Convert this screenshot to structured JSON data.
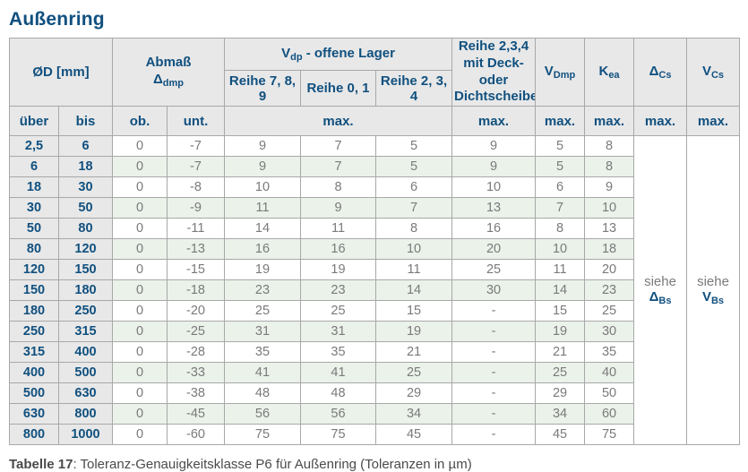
{
  "title": "Außenring",
  "colors": {
    "accent": "#10507f",
    "cellgray": "#e8e8e8",
    "rowgreen": "#eaf2ea",
    "gridline": "#a8a8a8",
    "datatext": "#7a7a7a"
  },
  "table": {
    "header": {
      "od": "ØD  [mm]",
      "abmass_line1": "Abmaß",
      "abmass_sym": "Δ",
      "abmass_sub": "dmp",
      "vdp_main": "V",
      "vdp_sub": "dp",
      "vdp_rest": "-  offene Lager",
      "reihe789": "Reihe 7, 8, 9",
      "reihe01": "Reihe 0, 1",
      "reihe234": "Reihe 2, 3, 4",
      "deck_line1": "Reihe 2,3,4",
      "deck_line2": "mit Deck- oder",
      "deck_line3": "Dichtscheiben",
      "vdmp_main": "V",
      "vdmp_sub": "Dmp",
      "kea_main": "K",
      "kea_sub": "ea",
      "dcs_main": "Δ",
      "dcs_sub": "Cs",
      "vcs_main": "V",
      "vcs_sub": "Cs",
      "ueber": "über",
      "bis": "bis",
      "ob": "ob.",
      "unt": "unt.",
      "max": "max."
    },
    "rows": [
      {
        "u": "2,5",
        "b": "6",
        "o": "0",
        "n": "-7",
        "r7": "9",
        "r0": "7",
        "r2": "5",
        "d": "9",
        "v": "5",
        "k": "8"
      },
      {
        "u": "6",
        "b": "18",
        "o": "0",
        "n": "-7",
        "r7": "9",
        "r0": "7",
        "r2": "5",
        "d": "9",
        "v": "5",
        "k": "8"
      },
      {
        "u": "18",
        "b": "30",
        "o": "0",
        "n": "-8",
        "r7": "10",
        "r0": "8",
        "r2": "6",
        "d": "10",
        "v": "6",
        "k": "9"
      },
      {
        "u": "30",
        "b": "50",
        "o": "0",
        "n": "-9",
        "r7": "11",
        "r0": "9",
        "r2": "7",
        "d": "13",
        "v": "7",
        "k": "10"
      },
      {
        "u": "50",
        "b": "80",
        "o": "0",
        "n": "-11",
        "r7": "14",
        "r0": "11",
        "r2": "8",
        "d": "16",
        "v": "8",
        "k": "13"
      },
      {
        "u": "80",
        "b": "120",
        "o": "0",
        "n": "-13",
        "r7": "16",
        "r0": "16",
        "r2": "10",
        "d": "20",
        "v": "10",
        "k": "18"
      },
      {
        "u": "120",
        "b": "150",
        "o": "0",
        "n": "-15",
        "r7": "19",
        "r0": "19",
        "r2": "11",
        "d": "25",
        "v": "11",
        "k": "20"
      },
      {
        "u": "150",
        "b": "180",
        "o": "0",
        "n": "-18",
        "r7": "23",
        "r0": "23",
        "r2": "14",
        "d": "30",
        "v": "14",
        "k": "23"
      },
      {
        "u": "180",
        "b": "250",
        "o": "0",
        "n": "-20",
        "r7": "25",
        "r0": "25",
        "r2": "15",
        "d": "-",
        "v": "15",
        "k": "25"
      },
      {
        "u": "250",
        "b": "315",
        "o": "0",
        "n": "-25",
        "r7": "31",
        "r0": "31",
        "r2": "19",
        "d": "-",
        "v": "19",
        "k": "30"
      },
      {
        "u": "315",
        "b": "400",
        "o": "0",
        "n": "-28",
        "r7": "35",
        "r0": "35",
        "r2": "21",
        "d": "-",
        "v": "21",
        "k": "35"
      },
      {
        "u": "400",
        "b": "500",
        "o": "0",
        "n": "-33",
        "r7": "41",
        "r0": "41",
        "r2": "25",
        "d": "-",
        "v": "25",
        "k": "40"
      },
      {
        "u": "500",
        "b": "630",
        "o": "0",
        "n": "-38",
        "r7": "48",
        "r0": "48",
        "r2": "29",
        "d": "-",
        "v": "29",
        "k": "50"
      },
      {
        "u": "630",
        "b": "800",
        "o": "0",
        "n": "-45",
        "r7": "56",
        "r0": "56",
        "r2": "34",
        "d": "-",
        "v": "34",
        "k": "60"
      },
      {
        "u": "800",
        "b": "1000",
        "o": "0",
        "n": "-60",
        "r7": "75",
        "r0": "75",
        "r2": "45",
        "d": "-",
        "v": "45",
        "k": "75"
      }
    ],
    "siehe": {
      "word": "siehe",
      "dbs_main": "Δ",
      "dbs_sub": "Bs",
      "vbs_main": "V",
      "vbs_sub": "Bs"
    }
  },
  "caption": {
    "label": "Tabelle 17",
    "text": ": Toleranz-Genauigkeitsklasse P6 für Außenring (Toleranzen in µm)"
  }
}
